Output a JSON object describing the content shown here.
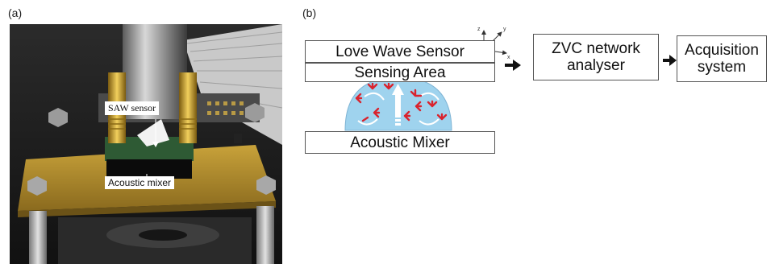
{
  "panels": {
    "a": {
      "label": "(a)",
      "callouts": {
        "saw_sensor": "SAW sensor",
        "acoustic_mixer": "Acoustic mixer"
      }
    },
    "b": {
      "label": "(b)",
      "boxes": {
        "love_wave_sensor": "Love Wave Sensor",
        "sensing_area": "Sensing Area",
        "acoustic_mixer": "Acoustic Mixer",
        "zvc_network_analyser": "ZVC network\nanalyser",
        "acquisition_system": "Acquisition\nsystem"
      },
      "axes": {
        "x": "x",
        "y": "y",
        "z": "z"
      }
    }
  },
  "colors": {
    "droplet": "#9fd3ee",
    "antibody": "#d9232e",
    "arrow": "#000000",
    "box_border": "#555555"
  }
}
